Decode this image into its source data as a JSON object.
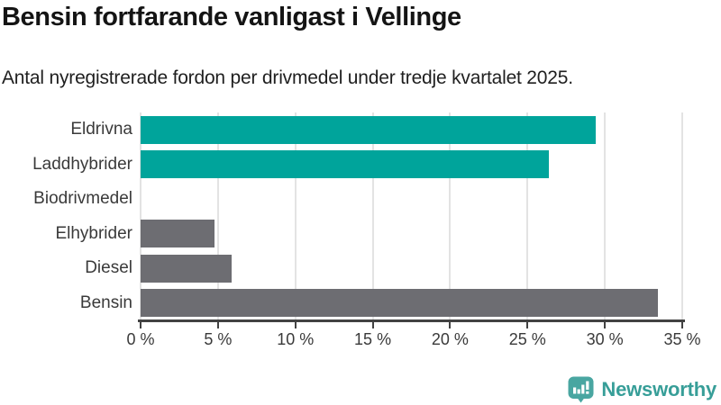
{
  "header": {
    "title": "Bensin fortfarande vanligast i Vellinge",
    "subtitle": "Antal nyregistrerade fordon per drivmedel under tredje kvartalet 2025."
  },
  "chart_data": {
    "type": "bar",
    "orientation": "horizontal",
    "categories": [
      "Eldrivna",
      "Laddhybrider",
      "Biodrivmedel",
      "Elhybrider",
      "Diesel",
      "Bensin"
    ],
    "values": [
      29.4,
      26.4,
      0,
      4.8,
      5.9,
      33.4
    ],
    "unit": "%",
    "bar_colors": [
      "#00a49b",
      "#00a49b",
      "#6d6d72",
      "#6d6d72",
      "#6d6d72",
      "#6d6d72"
    ],
    "xlim": [
      0,
      35
    ],
    "xticks": [
      0,
      5,
      10,
      15,
      20,
      25,
      30,
      35
    ],
    "xtick_labels": [
      "0 %",
      "5 %",
      "10 %",
      "15 %",
      "20 %",
      "25 %",
      "30 %",
      "35 %"
    ],
    "grid": true,
    "legend": "none",
    "title": "Bensin fortfarande vanligast i Vellinge",
    "xlabel": "",
    "ylabel": ""
  },
  "colors": {
    "accent_teal": "#00a49b",
    "neutral_gray": "#6d6d72",
    "gridline": "#e3e3e3",
    "axis": "#424242",
    "text_dark": "#141414",
    "text_label": "#3a3a3a",
    "brand_teal": "#379e98",
    "brand_icon_teal": "#49a6a1"
  },
  "footer": {
    "brand": "Newsworthy"
  }
}
